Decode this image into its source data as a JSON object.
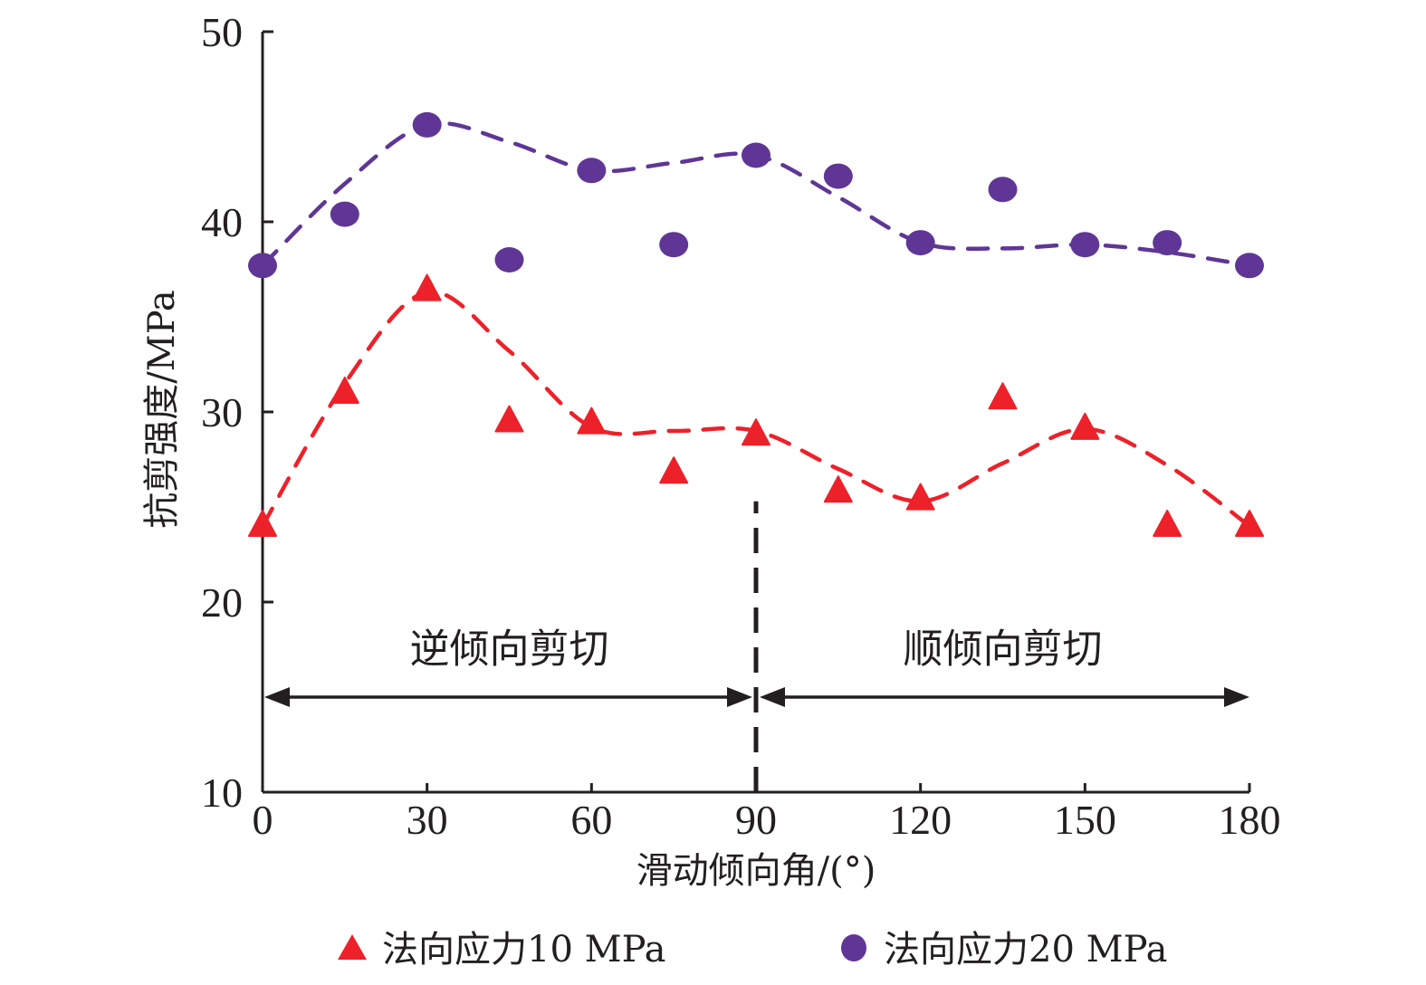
{
  "chart_data": {
    "type": "scatter",
    "title": "",
    "xlabel": "滑动倾向角/(°)",
    "ylabel": "抗剪强度/MPa",
    "xlim": [
      0,
      180
    ],
    "ylim": [
      10,
      50
    ],
    "xticks": [
      0,
      30,
      60,
      90,
      120,
      150,
      180
    ],
    "yticks": [
      10,
      20,
      30,
      40,
      50
    ],
    "xtick_labels": [
      "0",
      "30",
      "60",
      "90",
      "120",
      "150",
      "180"
    ],
    "ytick_labels": [
      "10",
      "20",
      "30",
      "40",
      "50"
    ],
    "grid": false,
    "legend_position": "bottom",
    "x": [
      0,
      15,
      30,
      45,
      60,
      75,
      90,
      105,
      120,
      135,
      150,
      165,
      180
    ],
    "series": [
      {
        "name": "法向应力10 MPa",
        "marker": "triangle",
        "color": "#ed2129",
        "values": [
          24.0,
          31.0,
          36.4,
          29.5,
          29.4,
          26.8,
          28.8,
          25.8,
          25.4,
          30.7,
          29.1,
          24.0,
          24.0
        ],
        "trend": {
          "style": "dashed",
          "x": [
            0,
            15,
            30,
            45,
            60,
            75,
            90,
            105,
            120,
            135,
            150,
            165,
            180
          ],
          "y": [
            24.0,
            31.5,
            36.3,
            33.2,
            29.2,
            29.0,
            29.0,
            27.0,
            25.3,
            27.3,
            29.1,
            27.2,
            24.0
          ]
        }
      },
      {
        "name": "法向应力20 MPa",
        "marker": "circle",
        "color": "#5f3695",
        "values": [
          37.7,
          40.4,
          45.1,
          38.0,
          42.7,
          38.8,
          43.5,
          42.4,
          38.9,
          41.7,
          38.8,
          38.9,
          37.7
        ],
        "trend": {
          "style": "dashed",
          "x": [
            0,
            15,
            30,
            45,
            60,
            75,
            90,
            105,
            120,
            135,
            150,
            165,
            180
          ],
          "y": [
            37.7,
            42.0,
            45.1,
            44.2,
            42.7,
            43.1,
            43.5,
            41.3,
            38.9,
            38.6,
            38.8,
            38.4,
            37.7
          ]
        }
      }
    ],
    "annotations": {
      "divider_x": 90,
      "divider_range": [
        10,
        25.3
      ],
      "regions": [
        {
          "label": "逆倾向剪切",
          "from": 0,
          "to": 90,
          "arrow_y": 15.0,
          "label_y": 17.5
        },
        {
          "label": "顺倾向剪切",
          "from": 90,
          "to": 180,
          "arrow_y": 15.0,
          "label_y": 17.5
        }
      ]
    }
  }
}
